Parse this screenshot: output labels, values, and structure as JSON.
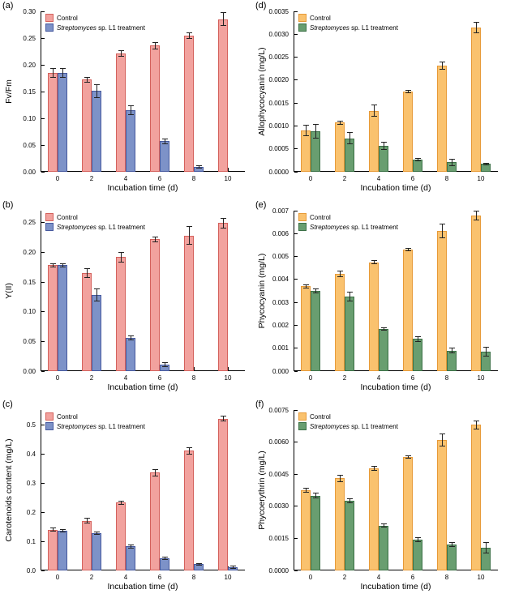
{
  "figure": {
    "xlabel": "Incubation time (d)",
    "legend": [
      {
        "series": "control",
        "italic": "",
        "text": "Control"
      },
      {
        "series": "treatment",
        "italic": "Streptomyces",
        "text": " sp. L1 treatment"
      }
    ]
  },
  "colors": {
    "axis": "#000000",
    "error_bar": "#222222",
    "left": {
      "control_fill": "#F2A29E",
      "control_edge": "#D4615C",
      "treatment_fill": "#7D92C8",
      "treatment_edge": "#46599E"
    },
    "right": {
      "control_fill": "#FAC26E",
      "control_edge": "#E79A38",
      "treatment_fill": "#699E70",
      "treatment_edge": "#3B7046"
    }
  },
  "chart_data": [
    {
      "type": "bar",
      "panel_label": "(a)",
      "palette": "left",
      "ylabel": "Fv/Fm",
      "xlabel": "Incubation time (d)",
      "categories": [
        "0",
        "2",
        "4",
        "6",
        "8",
        "10"
      ],
      "ylim": [
        0,
        0.3
      ],
      "yticks": [
        0,
        0.05,
        0.1,
        0.15,
        0.2,
        0.25,
        0.3
      ],
      "ytick_labels": [
        "0.00",
        "0.05",
        "0.10",
        "0.15",
        "0.20",
        "0.25",
        "0.30"
      ],
      "legend_position": "top-left",
      "grid": false,
      "series": [
        {
          "name": "Control",
          "values": [
            0.185,
            0.172,
            0.221,
            0.236,
            0.255,
            0.285
          ],
          "errors": [
            0.008,
            0.004,
            0.005,
            0.006,
            0.005,
            0.012
          ]
        },
        {
          "name": "Streptomyces sp. L1 treatment",
          "values": [
            0.185,
            0.151,
            0.115,
            0.057,
            0.009,
            0
          ],
          "errors": [
            0.008,
            0.012,
            0.008,
            0.004,
            0.002,
            0
          ]
        }
      ]
    },
    {
      "type": "bar",
      "panel_label": "(b)",
      "palette": "left",
      "ylabel": "Y(II)",
      "xlabel": "Incubation time (d)",
      "categories": [
        "0",
        "2",
        "4",
        "6",
        "8",
        "10"
      ],
      "ylim": [
        0,
        0.27
      ],
      "yticks": [
        0,
        0.05,
        0.1,
        0.15,
        0.2,
        0.25
      ],
      "ytick_labels": [
        "0.00",
        "0.05",
        "0.10",
        "0.15",
        "0.20",
        "0.25"
      ],
      "legend_position": "top-left",
      "grid": false,
      "series": [
        {
          "name": "Control",
          "values": [
            0.178,
            0.165,
            0.192,
            0.222,
            0.228,
            0.249
          ],
          "errors": [
            0.003,
            0.008,
            0.008,
            0.004,
            0.015,
            0.008
          ]
        },
        {
          "name": "Streptomyces sp. L1 treatment",
          "values": [
            0.178,
            0.128,
            0.056,
            0.011,
            0,
            0
          ],
          "errors": [
            0.003,
            0.01,
            0.004,
            0.003,
            0,
            0
          ]
        }
      ]
    },
    {
      "type": "bar",
      "panel_label": "(c)",
      "palette": "left",
      "ylabel": "Carotenoids content (mg/L)",
      "xlabel": "Incubation time (d)",
      "categories": [
        "0",
        "2",
        "4",
        "6",
        "8",
        "10"
      ],
      "ylim": [
        0,
        0.55
      ],
      "yticks": [
        0,
        0.1,
        0.2,
        0.3,
        0.4,
        0.5
      ],
      "ytick_labels": [
        "0.0",
        "0.1",
        "0.2",
        "0.3",
        "0.4",
        "0.5"
      ],
      "legend_position": "top-left",
      "grid": false,
      "series": [
        {
          "name": "Control",
          "values": [
            0.14,
            0.17,
            0.232,
            0.335,
            0.41,
            0.52
          ],
          "errors": [
            0.005,
            0.008,
            0.006,
            0.012,
            0.01,
            0.008
          ]
        },
        {
          "name": "Streptomyces sp. L1 treatment",
          "values": [
            0.136,
            0.127,
            0.082,
            0.042,
            0.022,
            0.012
          ],
          "errors": [
            0.005,
            0.004,
            0.006,
            0.004,
            0.003,
            0.004
          ]
        }
      ]
    },
    {
      "type": "bar",
      "panel_label": "(d)",
      "palette": "right",
      "ylabel": "Allophycocyanin (mg/L)",
      "xlabel": "Incubation time (d)",
      "categories": [
        "0",
        "2",
        "4",
        "6",
        "8",
        "10"
      ],
      "ylim": [
        0,
        0.0035
      ],
      "yticks": [
        0,
        0.0005,
        0.001,
        0.0015,
        0.002,
        0.0025,
        0.003,
        0.0035
      ],
      "ytick_labels": [
        "0.0000",
        "0.0005",
        "0.0010",
        "0.0015",
        "0.0020",
        "0.0025",
        "0.0030",
        "0.0035"
      ],
      "legend_position": "top-left",
      "grid": false,
      "series": [
        {
          "name": "Control",
          "values": [
            0.0009,
            0.00107,
            0.00133,
            0.00175,
            0.00232,
            0.00315
          ],
          "errors": [
            0.00012,
            4e-05,
            0.00012,
            3e-05,
            8e-05,
            0.00012
          ]
        },
        {
          "name": "Streptomyces sp. L1 treatment",
          "values": [
            0.00088,
            0.00073,
            0.00057,
            0.00026,
            0.00021,
            0.00017
          ],
          "errors": [
            0.00015,
            0.00012,
            8e-05,
            3e-05,
            7e-05,
            2e-05
          ]
        }
      ]
    },
    {
      "type": "bar",
      "panel_label": "(e)",
      "palette": "right",
      "ylabel": "Phycocyanin (mg/L)",
      "xlabel": "Incubation time (d)",
      "categories": [
        "0",
        "2",
        "4",
        "6",
        "8",
        "10"
      ],
      "ylim": [
        0,
        0.007
      ],
      "yticks": [
        0,
        0.001,
        0.002,
        0.003,
        0.004,
        0.005,
        0.006,
        0.007
      ],
      "ytick_labels": [
        "0.000",
        "0.001",
        "0.002",
        "0.003",
        "0.004",
        "0.005",
        "0.006",
        "0.007"
      ],
      "legend_position": "top-left",
      "grid": false,
      "series": [
        {
          "name": "Control",
          "values": [
            0.0037,
            0.00425,
            0.00475,
            0.0053,
            0.0061,
            0.0068
          ],
          "errors": [
            8e-05,
            0.00012,
            8e-05,
            5e-05,
            0.0003,
            0.0002
          ]
        },
        {
          "name": "Streptomyces sp. L1 treatment",
          "values": [
            0.0035,
            0.00325,
            0.00185,
            0.0014,
            0.0009,
            0.00085
          ],
          "errors": [
            8e-05,
            0.0002,
            5e-05,
            0.0001,
            0.0001,
            0.0002
          ]
        }
      ]
    },
    {
      "type": "bar",
      "panel_label": "(f)",
      "palette": "right",
      "ylabel": "Phycoerythrin (mg/L)",
      "xlabel": "Incubation time (d)",
      "categories": [
        "0",
        "2",
        "4",
        "6",
        "8",
        "10"
      ],
      "ylim": [
        0,
        0.0075
      ],
      "yticks": [
        0,
        0.0015,
        0.003,
        0.0045,
        0.006,
        0.0075
      ],
      "ytick_labels": [
        "0.0000",
        "0.0015",
        "0.0030",
        "0.0045",
        "0.0060",
        "0.0075"
      ],
      "legend_position": "top-left",
      "grid": false,
      "series": [
        {
          "name": "Control",
          "values": [
            0.00375,
            0.0043,
            0.00478,
            0.0053,
            0.0061,
            0.0068
          ],
          "errors": [
            0.0001,
            0.00015,
            0.0001,
            5e-05,
            0.0003,
            0.0002
          ]
        },
        {
          "name": "Streptomyces sp. L1 treatment",
          "values": [
            0.0035,
            0.00325,
            0.0021,
            0.00145,
            0.0012,
            0.00105
          ],
          "errors": [
            0.0001,
            0.0001,
            8e-05,
            0.0001,
            0.0001,
            0.00025
          ]
        }
      ]
    }
  ]
}
